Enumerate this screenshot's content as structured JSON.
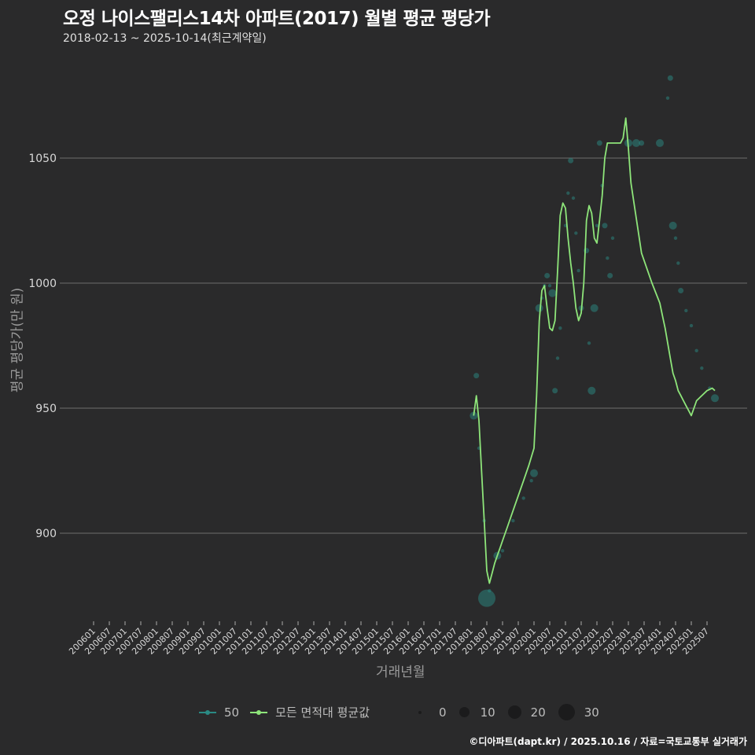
{
  "header": {
    "title": "오정 나이스팰리스14차 아파트(2017) 월별 평균 평당가",
    "subtitle": "2018-02-13 ~ 2025-10-14(최근계약일)"
  },
  "axes": {
    "ylabel": "평균 평당가(만 원)",
    "xlabel": "거래년월"
  },
  "legend": {
    "series": [
      {
        "label": "50",
        "color": "#2a8a84"
      },
      {
        "label": "모든 면적대 평균값",
        "color": "#8ee57a"
      }
    ],
    "sizes": [
      {
        "label": "0",
        "r": 2
      },
      {
        "label": "10",
        "r": 6
      },
      {
        "label": "20",
        "r": 9
      },
      {
        "label": "30",
        "r": 11
      }
    ]
  },
  "footer": "©디아파트(dapt.kr) / 2025.10.16 / 자료=국토교통부 실거래가",
  "colors": {
    "background": "#2a2a2b",
    "grid": "#6e6e6e",
    "line": "#8ee57a",
    "points": "#2a8a84"
  },
  "chart_data": {
    "type": "line",
    "title": "오정 나이스팰리스14차 아파트(2017) 월별 평균 평당가",
    "subtitle": "2018-02-13 ~ 2025-10-14(최근계약일)",
    "xlabel": "거래년월",
    "ylabel": "평균 평당가(만 원)",
    "ylim": [
      862,
      1090
    ],
    "yticks": [
      900,
      950,
      1000,
      1050
    ],
    "grid": true,
    "legend_position": "bottom",
    "x_tick_labels": [
      "200601",
      "200607",
      "200701",
      "200707",
      "200801",
      "200807",
      "200901",
      "200907",
      "201001",
      "201007",
      "201101",
      "201107",
      "201201",
      "201207",
      "201301",
      "201307",
      "201401",
      "201407",
      "201501",
      "201507",
      "201601",
      "201607",
      "201701",
      "201707",
      "201801",
      "201807",
      "201901",
      "201907",
      "202001",
      "202007",
      "202101",
      "202107",
      "202201",
      "202207",
      "202301",
      "202307",
      "202401",
      "202407",
      "202501",
      "202507"
    ],
    "series": [
      {
        "name": "모든 면적대 평균값",
        "x": [
          "2018-02",
          "2018-03",
          "2018-04",
          "2018-05",
          "2018-06",
          "2018-07",
          "2018-08",
          "2018-09",
          "2018-10",
          "2018-11",
          "2018-12",
          "2019-01",
          "2019-03",
          "2019-05",
          "2019-07",
          "2019-09",
          "2019-11",
          "2020-01",
          "2020-02",
          "2020-03",
          "2020-04",
          "2020-05",
          "2020-06",
          "2020-07",
          "2020-08",
          "2020-09",
          "2020-10",
          "2020-11",
          "2020-12",
          "2021-01",
          "2021-02",
          "2021-03",
          "2021-04",
          "2021-05",
          "2021-06",
          "2021-07",
          "2021-08",
          "2021-09",
          "2021-10",
          "2021-11",
          "2021-12",
          "2022-01",
          "2022-02",
          "2022-03",
          "2022-04",
          "2022-05",
          "2022-06",
          "2022-07",
          "2022-08",
          "2022-09",
          "2022-10",
          "2022-11",
          "2022-12",
          "2023-01",
          "2023-02",
          "2023-06",
          "2023-10",
          "2024-01",
          "2024-02",
          "2024-03",
          "2024-04",
          "2024-05",
          "2024-06",
          "2024-07",
          "2024-08",
          "2024-09",
          "2024-10",
          "2024-11",
          "2024-12",
          "2025-01",
          "2025-03",
          "2025-05",
          "2025-07",
          "2025-09",
          "2025-10"
        ],
        "values": [
          947,
          955,
          945,
          925,
          905,
          885,
          880,
          884,
          888,
          891,
          894,
          897,
          903,
          909,
          915,
          921,
          927,
          934,
          955,
          985,
          997,
          999,
          990,
          982,
          981,
          985,
          1005,
          1027,
          1032,
          1030,
          1018,
          1008,
          1000,
          990,
          985,
          988,
          1000,
          1025,
          1031,
          1028,
          1018,
          1016,
          1025,
          1035,
          1050,
          1056,
          1056,
          1056,
          1056,
          1056,
          1056,
          1058,
          1066,
          1054,
          1040,
          1012,
          1000,
          992,
          987,
          982,
          976,
          970,
          964,
          961,
          957,
          955,
          953,
          951,
          949,
          947,
          953,
          955,
          957,
          958,
          957
        ],
        "note": "Line values approximated from plot pixels"
      },
      {
        "name": "50",
        "type": "scatter",
        "points": [
          {
            "x": "2018-02",
            "y": 947,
            "size": 6
          },
          {
            "x": "2018-03",
            "y": 963,
            "size": 4
          },
          {
            "x": "2018-04",
            "y": 934,
            "size": 2
          },
          {
            "x": "2018-06",
            "y": 905,
            "size": 2
          },
          {
            "x": "2018-08",
            "y": 877,
            "size": 2
          },
          {
            "x": "2018-07",
            "y": 874,
            "size": 30
          },
          {
            "x": "2018-11",
            "y": 891,
            "size": 6
          },
          {
            "x": "2019-01",
            "y": 893,
            "size": 2
          },
          {
            "x": "2019-05",
            "y": 905,
            "size": 2
          },
          {
            "x": "2019-09",
            "y": 914,
            "size": 2
          },
          {
            "x": "2019-12",
            "y": 921,
            "size": 2
          },
          {
            "x": "2020-01",
            "y": 924,
            "size": 6
          },
          {
            "x": "2020-03",
            "y": 990,
            "size": 6
          },
          {
            "x": "2020-04",
            "y": 994,
            "size": 2
          },
          {
            "x": "2020-05",
            "y": 999,
            "size": 2
          },
          {
            "x": "2020-06",
            "y": 1003,
            "size": 4
          },
          {
            "x": "2020-07",
            "y": 999,
            "size": 2
          },
          {
            "x": "2020-08",
            "y": 996,
            "size": 6
          },
          {
            "x": "2020-09",
            "y": 957,
            "size": 4
          },
          {
            "x": "2020-10",
            "y": 970,
            "size": 2
          },
          {
            "x": "2020-11",
            "y": 982,
            "size": 2
          },
          {
            "x": "2021-01",
            "y": 1023,
            "size": 2
          },
          {
            "x": "2021-02",
            "y": 1036,
            "size": 2
          },
          {
            "x": "2021-03",
            "y": 1049,
            "size": 4
          },
          {
            "x": "2021-04",
            "y": 1034,
            "size": 2
          },
          {
            "x": "2021-05",
            "y": 1020,
            "size": 2
          },
          {
            "x": "2021-06",
            "y": 1005,
            "size": 2
          },
          {
            "x": "2021-07",
            "y": 990,
            "size": 4
          },
          {
            "x": "2021-09",
            "y": 1013,
            "size": 4
          },
          {
            "x": "2021-10",
            "y": 976,
            "size": 2
          },
          {
            "x": "2021-11",
            "y": 957,
            "size": 6
          },
          {
            "x": "2021-12",
            "y": 990,
            "size": 6
          },
          {
            "x": "2022-01",
            "y": 1023,
            "size": 2
          },
          {
            "x": "2022-02",
            "y": 1056,
            "size": 4
          },
          {
            "x": "2022-03",
            "y": 1039,
            "size": 2
          },
          {
            "x": "2022-04",
            "y": 1023,
            "size": 4
          },
          {
            "x": "2022-05",
            "y": 1010,
            "size": 2
          },
          {
            "x": "2022-06",
            "y": 1003,
            "size": 4
          },
          {
            "x": "2022-07",
            "y": 1018,
            "size": 2
          },
          {
            "x": "2023-01",
            "y": 1056,
            "size": 6
          },
          {
            "x": "2023-04",
            "y": 1056,
            "size": 6
          },
          {
            "x": "2023-06",
            "y": 1056,
            "size": 4
          },
          {
            "x": "2024-01",
            "y": 1056,
            "size": 6
          },
          {
            "x": "2024-04",
            "y": 1074,
            "size": 2
          },
          {
            "x": "2024-05",
            "y": 1082,
            "size": 4
          },
          {
            "x": "2024-06",
            "y": 1023,
            "size": 6
          },
          {
            "x": "2024-07",
            "y": 1018,
            "size": 2
          },
          {
            "x": "2024-08",
            "y": 1008,
            "size": 2
          },
          {
            "x": "2024-09",
            "y": 997,
            "size": 4
          },
          {
            "x": "2024-11",
            "y": 989,
            "size": 2
          },
          {
            "x": "2025-01",
            "y": 983,
            "size": 2
          },
          {
            "x": "2025-03",
            "y": 973,
            "size": 2
          },
          {
            "x": "2025-05",
            "y": 966,
            "size": 2
          },
          {
            "x": "2025-08",
            "y": 958,
            "size": 2
          },
          {
            "x": "2025-10",
            "y": 954,
            "size": 6
          }
        ]
      }
    ]
  }
}
